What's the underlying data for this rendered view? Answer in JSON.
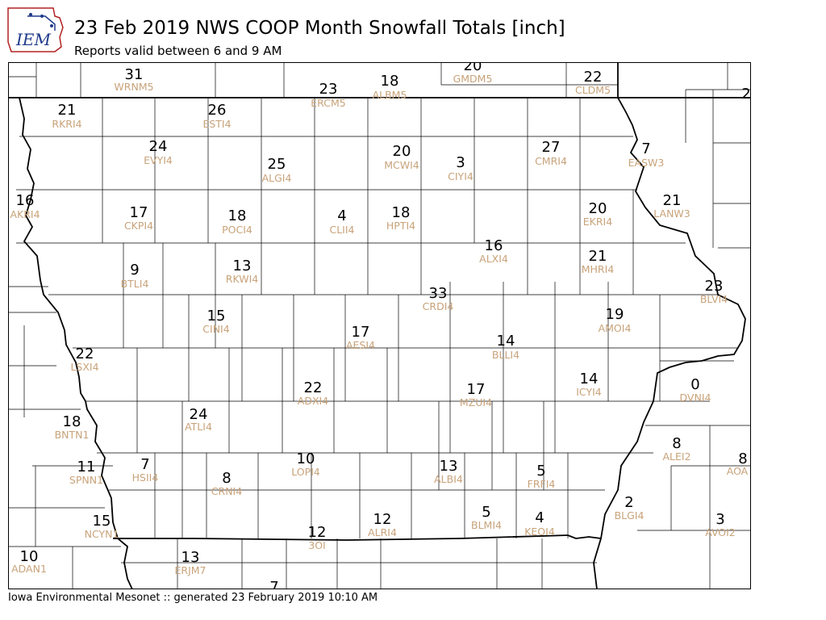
{
  "header": {
    "title": "23 Feb 2019 NWS COOP Month Snowfall Totals [inch]",
    "subtitle": "Reports valid between 6 and 9 AM",
    "logo_text": "IEM"
  },
  "footer": {
    "text": "Iowa Environmental Mesonet :: generated 23 February 2019 10:10 AM"
  },
  "colors": {
    "value_text": "#000000",
    "station_text": "#c8a37a",
    "border": "#000000"
  },
  "stations": [
    {
      "id": "WRNM5",
      "value": "31"
    },
    {
      "id": "GMDM5",
      "value": "20"
    },
    {
      "id": "CLDM5",
      "value": "22"
    },
    {
      "id": "ERCM5",
      "value": "23"
    },
    {
      "id": "ALBM5",
      "value": "18"
    },
    {
      "id": "RKRI4",
      "value": "21"
    },
    {
      "id": "ESTI4",
      "value": "26"
    },
    {
      "id": "EVYI4",
      "value": "24"
    },
    {
      "id": "ALGI4",
      "value": "25"
    },
    {
      "id": "MCWI4",
      "value": "20"
    },
    {
      "id": "CIYI4",
      "value": "3"
    },
    {
      "id": "CMRI4",
      "value": "27"
    },
    {
      "id": "EASW3",
      "value": "7"
    },
    {
      "id": "AKRI4",
      "value": "16"
    },
    {
      "id": "CKPI4",
      "value": "17"
    },
    {
      "id": "POCI4",
      "value": "18"
    },
    {
      "id": "CLII4",
      "value": "4"
    },
    {
      "id": "HPTI4",
      "value": "18"
    },
    {
      "id": "EKRI4",
      "value": "20"
    },
    {
      "id": "LANW3",
      "value": "21"
    },
    {
      "id": "BTLI4",
      "value": "9"
    },
    {
      "id": "RKWI4",
      "value": "13"
    },
    {
      "id": "ALXI4",
      "value": "16"
    },
    {
      "id": "MHRI4",
      "value": "21"
    },
    {
      "id": "CRDI4",
      "value": "33"
    },
    {
      "id": "BLVI4",
      "value": "23"
    },
    {
      "id": "CINI4",
      "value": "15"
    },
    {
      "id": "AMOI4",
      "value": "19"
    },
    {
      "id": "AESI4",
      "value": "17"
    },
    {
      "id": "BLLI4",
      "value": "14"
    },
    {
      "id": "LSXI4",
      "value": "22"
    },
    {
      "id": "ICYI4",
      "value": "14"
    },
    {
      "id": "ADXI4",
      "value": "22"
    },
    {
      "id": "MZUI4",
      "value": "17"
    },
    {
      "id": "DVNI4",
      "value": "0"
    },
    {
      "id": "ATLI4",
      "value": "24"
    },
    {
      "id": "BNTN1",
      "value": "18"
    },
    {
      "id": "ALEI2",
      "value": "8"
    },
    {
      "id": "SPNN1",
      "value": "11"
    },
    {
      "id": "HSII4",
      "value": "7"
    },
    {
      "id": "CRNI4",
      "value": "8"
    },
    {
      "id": "LOPI4",
      "value": "10"
    },
    {
      "id": "ALBI4",
      "value": "13"
    },
    {
      "id": "FRFI4",
      "value": "5"
    },
    {
      "id": "BLGI4",
      "value": "2"
    },
    {
      "id": "NCYN1",
      "value": "15"
    },
    {
      "id": "ALRI4",
      "value": "12"
    },
    {
      "id": "BLMI4",
      "value": "5"
    },
    {
      "id": "KEOI4",
      "value": "4"
    },
    {
      "id": "AVOI2",
      "value": "3"
    },
    {
      "id": "3OI",
      "value": "12"
    },
    {
      "id": "ADAN1",
      "value": "10"
    },
    {
      "id": "ERJM7",
      "value": "13"
    }
  ],
  "edge_values": [
    {
      "value": "2",
      "note": "cut off at right edge"
    },
    {
      "value": "8",
      "station": "AOA",
      "note": "cut off at right edge"
    },
    {
      "value": "7",
      "note": "cut off at bottom edge"
    }
  ]
}
